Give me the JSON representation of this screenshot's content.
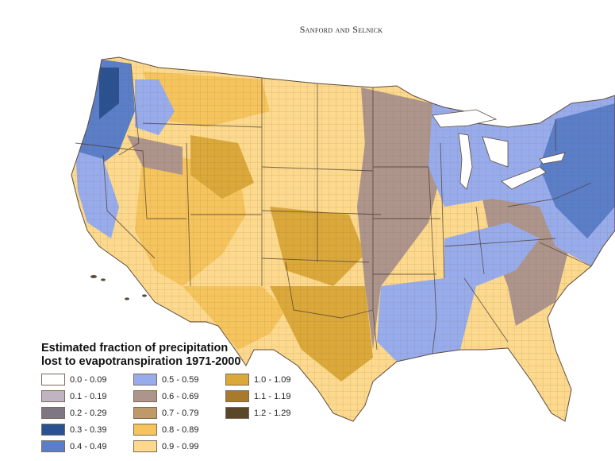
{
  "header": {
    "running_head": "Sanford and Selnick"
  },
  "legend": {
    "title_line1": "Estimated fraction of precipitation",
    "title_line2": "lost to evapotranspiration 1971-2000",
    "items": [
      {
        "label": "0.0 - 0.09",
        "color": "#ffffff"
      },
      {
        "label": "0.5 - 0.59",
        "color": "#98acec"
      },
      {
        "label": "1.0 - 1.09",
        "color": "#dba83a"
      },
      {
        "label": "0.1 - 0.19",
        "color": "#c0b4c2"
      },
      {
        "label": "0.6 - 0.69",
        "color": "#ad958b"
      },
      {
        "label": "1.1 - 1.19",
        "color": "#a87b2c"
      },
      {
        "label": "0.2 - 0.29",
        "color": "#7e7683"
      },
      {
        "label": "0.7 - 0.79",
        "color": "#bf9a68"
      },
      {
        "label": "1.2 - 1.29",
        "color": "#5a4628"
      },
      {
        "label": "0.3 - 0.39",
        "color": "#2a5290"
      },
      {
        "label": "0.8 - 0.89",
        "color": "#f6c45c"
      },
      {
        "label": "",
        "color": ""
      },
      {
        "label": "0.4 - 0.49",
        "color": "#5a7ec8"
      },
      {
        "label": "0.9 - 0.99",
        "color": "#fcd98c"
      },
      {
        "label": "",
        "color": ""
      }
    ]
  }
}
